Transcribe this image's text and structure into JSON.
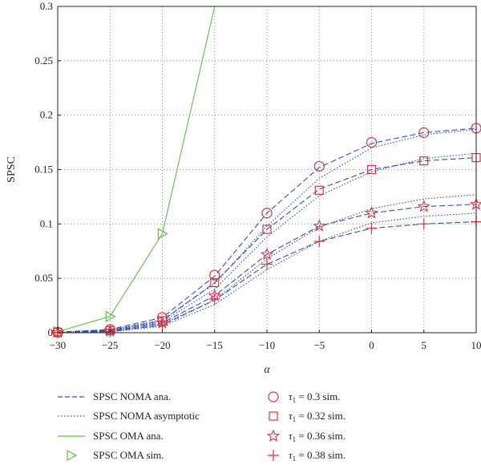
{
  "chart_data": {
    "type": "line",
    "xlabel": "α",
    "ylabel": "SPSC",
    "xlim": [
      -30,
      10
    ],
    "ylim": [
      0,
      0.3
    ],
    "x_ticks": [
      -30,
      -25,
      -20,
      -15,
      -10,
      -5,
      0,
      5,
      10
    ],
    "x_tick_labels": [
      "−30",
      "−25",
      "−20",
      "−15",
      "−10",
      "−5",
      "0",
      "5",
      "10"
    ],
    "y_ticks": [
      0,
      0.05,
      0.1,
      0.15,
      0.2,
      0.25,
      0.3
    ],
    "y_tick_labels": [
      "0",
      "0.05",
      "0.1",
      "0.15",
      "0.2",
      "0.25",
      "0.3"
    ],
    "grid": true,
    "legend_position": "below",
    "colors": {
      "noma": "#3050b8",
      "oma": "#5cc040",
      "sim": "#e8303a",
      "grid": "#7a7a7a"
    },
    "x": [
      -30,
      -25,
      -20,
      -15,
      -10,
      -5,
      0,
      5,
      10
    ],
    "series": [
      {
        "name": "SPSC NOMA ana.",
        "group": "τ1=0.3",
        "style": "dashed",
        "values": [
          0.0005,
          0.003,
          0.014,
          0.052,
          0.11,
          0.152,
          0.174,
          0.184,
          0.188
        ]
      },
      {
        "name": "SPSC NOMA asymptotic",
        "group": "τ1=0.3",
        "style": "dotted",
        "values": [
          0.0004,
          0.0025,
          0.012,
          0.045,
          0.098,
          0.142,
          0.17,
          0.182,
          0.187
        ]
      },
      {
        "name": "SPSC NOMA ana.",
        "group": "τ1=0.32",
        "style": "dashed",
        "values": [
          0.0004,
          0.0022,
          0.011,
          0.046,
          0.095,
          0.132,
          0.15,
          0.158,
          0.161
        ]
      },
      {
        "name": "SPSC NOMA asymptotic",
        "group": "τ1=0.32",
        "style": "dotted",
        "values": [
          0.0003,
          0.002,
          0.01,
          0.04,
          0.088,
          0.126,
          0.148,
          0.16,
          0.165
        ]
      },
      {
        "name": "SPSC NOMA ana.",
        "group": "τ1=0.36",
        "style": "dashed",
        "values": [
          0.0003,
          0.0015,
          0.009,
          0.034,
          0.072,
          0.098,
          0.11,
          0.116,
          0.118
        ]
      },
      {
        "name": "SPSC NOMA asymptotic",
        "group": "τ1=0.36",
        "style": "dotted",
        "values": [
          0.0002,
          0.0012,
          0.008,
          0.03,
          0.068,
          0.097,
          0.114,
          0.123,
          0.127
        ]
      },
      {
        "name": "SPSC NOMA ana.",
        "group": "τ1=0.38",
        "style": "dashed",
        "values": [
          0.0002,
          0.001,
          0.007,
          0.03,
          0.063,
          0.084,
          0.096,
          0.1,
          0.102
        ]
      },
      {
        "name": "SPSC NOMA asymptotic",
        "group": "τ1=0.38",
        "style": "dotted",
        "values": [
          0.0001,
          0.0008,
          0.006,
          0.026,
          0.058,
          0.084,
          0.101,
          0.107,
          0.11
        ]
      },
      {
        "name": "SPSC OMA ana.",
        "style": "solid",
        "x": [
          -30,
          -25,
          -20,
          -15
        ],
        "values": [
          0.001,
          0.015,
          0.091,
          0.3
        ]
      }
    ],
    "markers": [
      {
        "name": "SPSC OMA sim.",
        "shape": "triangle",
        "x": [
          -30,
          -25,
          -20
        ],
        "values": [
          0.001,
          0.015,
          0.091
        ]
      },
      {
        "name": "τ1 = 0.3 sim.",
        "shape": "circle",
        "x": [
          -30,
          -25,
          -20,
          -15,
          -10,
          -5,
          0,
          5,
          10
        ],
        "values": [
          0.0005,
          0.003,
          0.014,
          0.053,
          0.11,
          0.153,
          0.175,
          0.184,
          0.188
        ]
      },
      {
        "name": "τ1 = 0.32 sim.",
        "shape": "square",
        "x": [
          -30,
          -25,
          -20,
          -15,
          -10,
          -5,
          0,
          5,
          10
        ],
        "values": [
          0.0004,
          0.002,
          0.011,
          0.046,
          0.095,
          0.131,
          0.15,
          0.158,
          0.161
        ]
      },
      {
        "name": "τ1 = 0.36 sim.",
        "shape": "star",
        "x": [
          -30,
          -25,
          -20,
          -15,
          -10,
          -5,
          0,
          5,
          10
        ],
        "values": [
          0.0003,
          0.0015,
          0.009,
          0.034,
          0.072,
          0.098,
          0.11,
          0.116,
          0.118
        ]
      },
      {
        "name": "τ1 = 0.38 sim.",
        "shape": "plus",
        "x": [
          -30,
          -25,
          -20,
          -15,
          -10,
          -5,
          0,
          5,
          10
        ],
        "values": [
          0.0002,
          0.001,
          0.007,
          0.031,
          0.063,
          0.084,
          0.096,
          0.1,
          0.102
        ]
      }
    ]
  },
  "legend": {
    "noma_ana": "SPSC NOMA ana.",
    "noma_asym": "SPSC NOMA asymptotic",
    "oma_ana": "SPSC OMA ana.",
    "oma_sim": "SPSC OMA sim.",
    "tau_symbol": "τ",
    "tau_sub": "1",
    "tau_03": " = 0.3 sim.",
    "tau_032": " = 0.32 sim.",
    "tau_036": " = 0.36 sim.",
    "tau_038": " = 0.38 sim."
  }
}
